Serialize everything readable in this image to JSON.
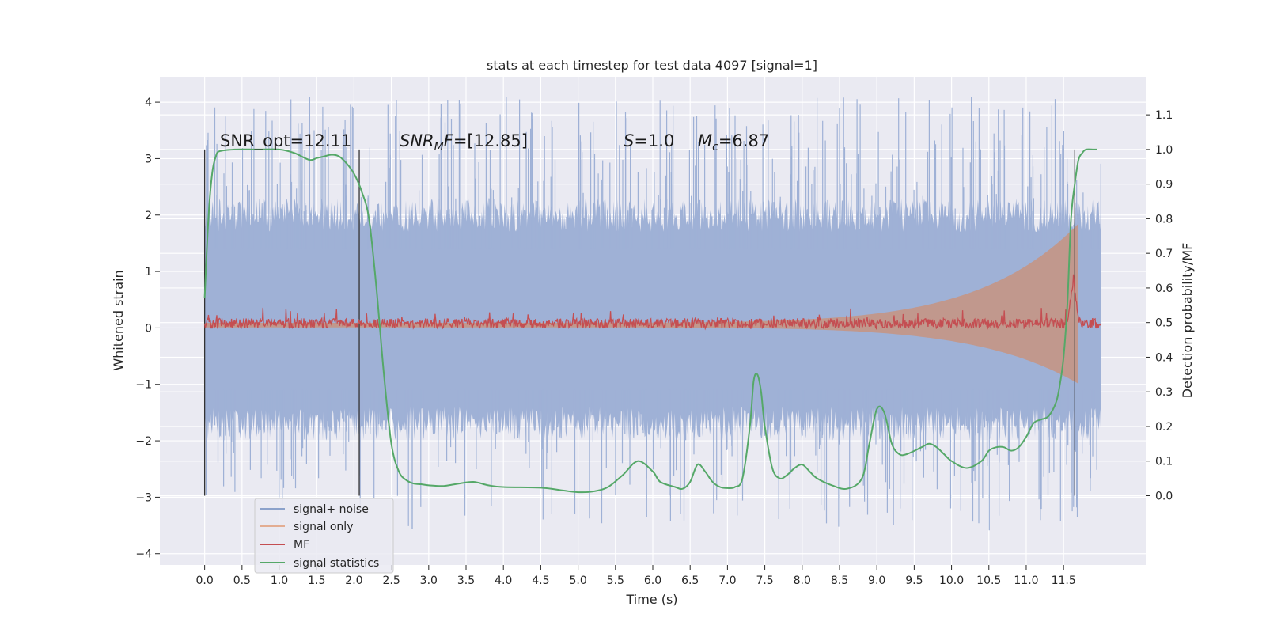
{
  "chart_data": {
    "type": "line",
    "title": "stats at each timestep for test data 4097 [signal=1]",
    "xlabel": "Time (s)",
    "ylabel": "Whitened strain",
    "ylabel_right": "Detection probability/MF",
    "xlim": [
      -0.6,
      12.6
    ],
    "ylim": [
      -4.2,
      4.45
    ],
    "ylim_right": [
      -0.2,
      1.21
    ],
    "x_ticks": [
      0.0,
      0.5,
      1.0,
      1.5,
      2.0,
      2.5,
      3.0,
      3.5,
      4.0,
      4.5,
      5.0,
      5.5,
      6.0,
      6.5,
      7.0,
      7.5,
      8.0,
      8.5,
      9.0,
      9.5,
      10.0,
      10.5,
      11.0,
      11.5
    ],
    "x_tick_labels": [
      "0.0",
      "0.5",
      "1.0",
      "1.5",
      "2.0",
      "2.5",
      "3.0",
      "3.5",
      "4.0",
      "4.5",
      "5.0",
      "5.5",
      "6.0",
      "6.5",
      "7.0",
      "7.5",
      "8.0",
      "8.5",
      "9.0",
      "9.5",
      "10.0",
      "10.5",
      "11.0",
      "11.5"
    ],
    "y_ticks": [
      4,
      3,
      2,
      1,
      0,
      -1,
      -2,
      -3,
      -4
    ],
    "y_tick_labels": [
      "4",
      "3",
      "2",
      "1",
      "0",
      "−1",
      "−2",
      "−3",
      "−4"
    ],
    "y_right_ticks": [
      1.1,
      1.0,
      0.9,
      0.8,
      0.7,
      0.6,
      0.5,
      0.4,
      0.3,
      0.2,
      0.1,
      0.0
    ],
    "y_right_tick_labels": [
      "1.1",
      "1.0",
      "0.9",
      "0.8",
      "0.7",
      "0.6",
      "0.5",
      "0.4",
      "0.3",
      "0.2",
      "0.1",
      "0.0"
    ],
    "grid": true,
    "legend_position": "lower-left",
    "series": [
      {
        "name": "signal+ noise",
        "color": "#4c72b0",
        "axis": "left",
        "style": "noise band",
        "x_range": [
          0.0,
          12.0
        ],
        "core_range": [
          -1.1,
          1.4
        ],
        "peak_range": [
          -3.6,
          4.1
        ]
      },
      {
        "name": "signal only",
        "color": "#dd8452",
        "axis": "left",
        "style": "chirp envelope",
        "x_range": [
          0.0,
          11.7
        ],
        "end_amplitude": 1.8
      },
      {
        "name": "MF",
        "color": "#c44e52",
        "axis": "left",
        "style": "line",
        "x_range": [
          0.0,
          12.0
        ],
        "level": 0.08,
        "peak": {
          "x": 11.63,
          "y": 1.0
        }
      },
      {
        "name": "signal statistics",
        "color": "#55a868",
        "axis": "right",
        "x": [
          0.0,
          0.05,
          0.1,
          0.15,
          0.2,
          0.4,
          0.7,
          1.0,
          1.2,
          1.4,
          1.5,
          1.6,
          1.7,
          1.8,
          1.9,
          2.0,
          2.1,
          2.2,
          2.3,
          2.4,
          2.5,
          2.6,
          2.7,
          2.8,
          2.9,
          3.0,
          3.2,
          3.4,
          3.6,
          3.8,
          4.0,
          4.5,
          4.8,
          5.0,
          5.2,
          5.4,
          5.6,
          5.8,
          6.0,
          6.1,
          6.3,
          6.4,
          6.5,
          6.6,
          6.7,
          6.8,
          6.9,
          7.0,
          7.1,
          7.2,
          7.3,
          7.35,
          7.4,
          7.45,
          7.5,
          7.6,
          7.7,
          7.8,
          7.9,
          8.0,
          8.1,
          8.2,
          8.4,
          8.6,
          8.8,
          8.9,
          9.0,
          9.1,
          9.2,
          9.3,
          9.4,
          9.6,
          9.7,
          9.8,
          9.9,
          10.0,
          10.2,
          10.4,
          10.5,
          10.6,
          10.7,
          10.8,
          10.9,
          11.0,
          11.1,
          11.2,
          11.3,
          11.4,
          11.45,
          11.5,
          11.55,
          11.6,
          11.65,
          11.7,
          11.75,
          11.8,
          11.9,
          11.95
        ],
        "values": [
          0.57,
          0.8,
          0.93,
          0.98,
          0.995,
          1.0,
          1.0,
          1.0,
          0.99,
          0.97,
          0.975,
          0.98,
          0.985,
          0.98,
          0.96,
          0.93,
          0.88,
          0.8,
          0.6,
          0.35,
          0.15,
          0.07,
          0.045,
          0.035,
          0.033,
          0.03,
          0.028,
          0.035,
          0.04,
          0.03,
          0.025,
          0.023,
          0.015,
          0.01,
          0.012,
          0.025,
          0.06,
          0.1,
          0.07,
          0.04,
          0.025,
          0.02,
          0.04,
          0.09,
          0.07,
          0.04,
          0.025,
          0.022,
          0.025,
          0.05,
          0.2,
          0.33,
          0.35,
          0.3,
          0.2,
          0.08,
          0.05,
          0.06,
          0.08,
          0.09,
          0.07,
          0.05,
          0.03,
          0.02,
          0.05,
          0.15,
          0.25,
          0.24,
          0.15,
          0.12,
          0.12,
          0.14,
          0.15,
          0.14,
          0.12,
          0.1,
          0.08,
          0.1,
          0.13,
          0.14,
          0.14,
          0.13,
          0.14,
          0.17,
          0.21,
          0.22,
          0.23,
          0.27,
          0.32,
          0.4,
          0.55,
          0.8,
          0.9,
          0.97,
          0.99,
          1.0,
          1.0,
          1.0
        ]
      }
    ],
    "vlines": [
      0.0,
      2.07,
      11.65
    ],
    "annotations": [
      {
        "text": "SNR_opt=12.11"
      },
      {
        "text": "SNR_MF=[12.85]",
        "main": "SNR",
        "sub": "M",
        "mid": "F",
        "rest": "=[12.85]"
      },
      {
        "text": "S=1.0",
        "main": "S",
        "rest": "=1.0"
      },
      {
        "text": "M_c=6.87",
        "main": "M",
        "sub": "c",
        "rest": "=6.87"
      }
    ]
  }
}
